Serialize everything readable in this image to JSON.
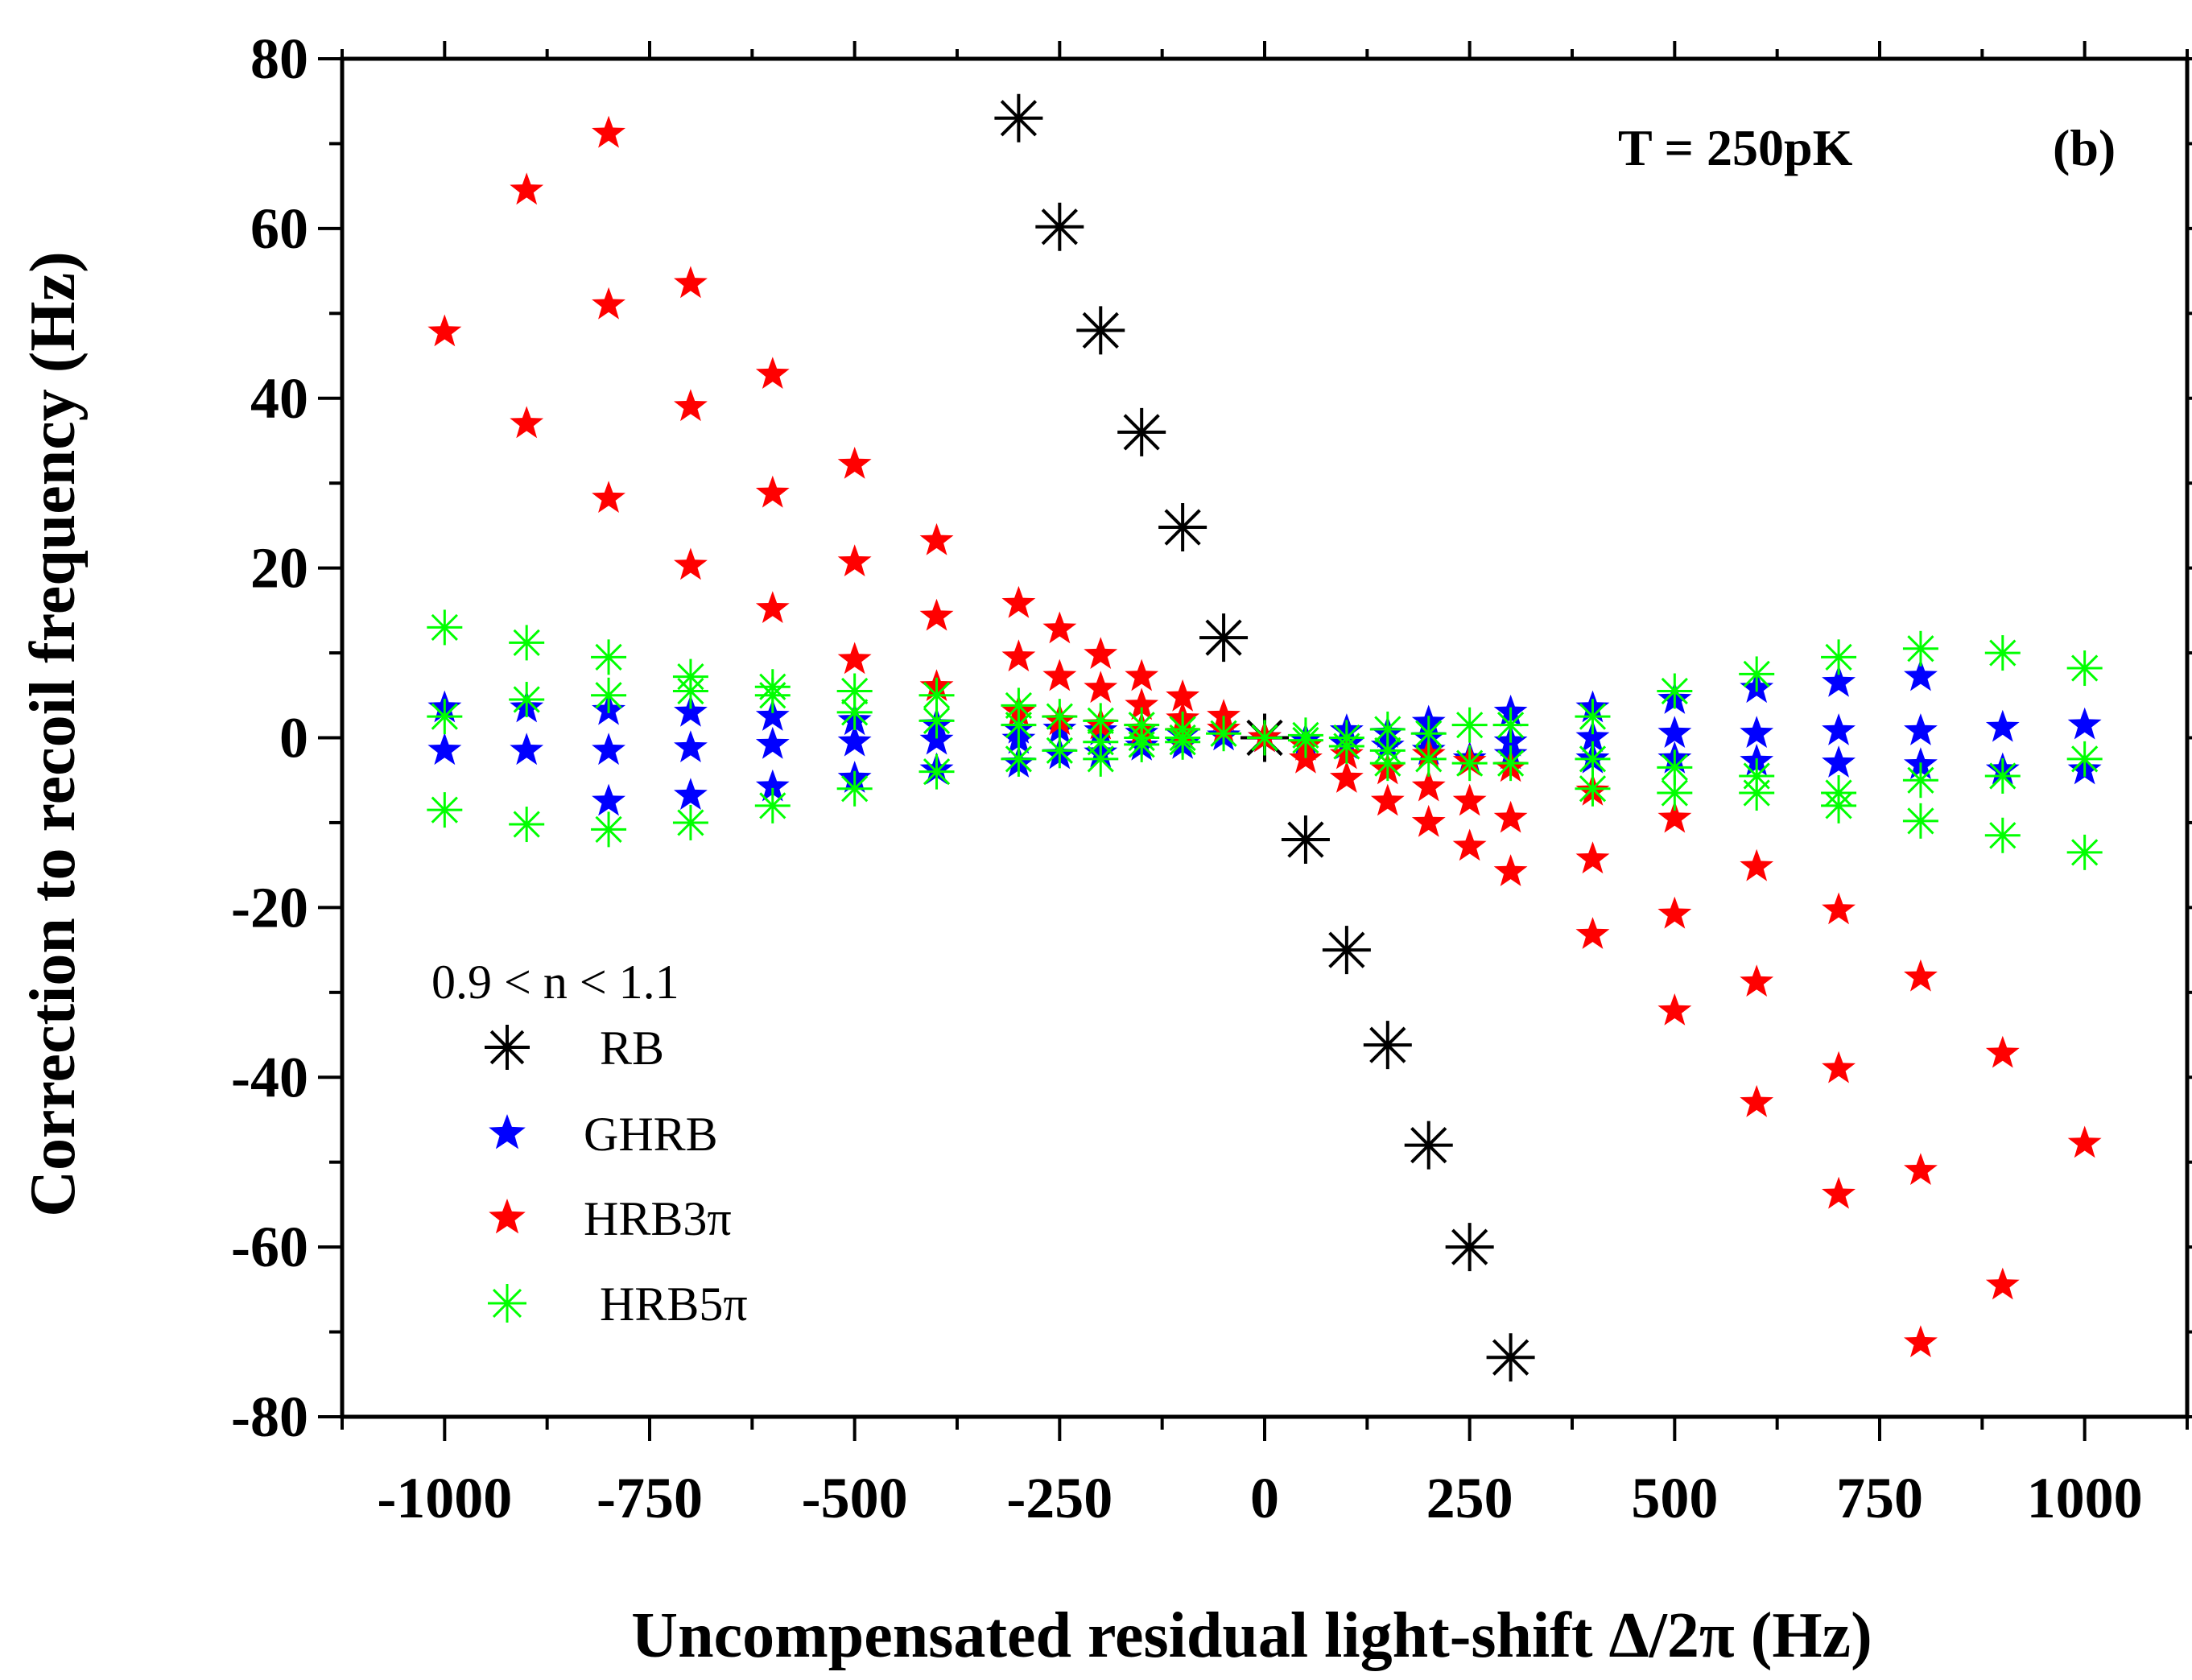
{
  "chart_data": {
    "type": "scatter",
    "title": "",
    "xlabel": "Uncompensated residual  light-shift Δ/2π (Hz)",
    "ylabel": "Correction to recoil frequency (Hz)",
    "xlim": [
      -1125,
      1125
    ],
    "ylim": [
      -80,
      80
    ],
    "x_ticks": [
      -1000,
      -750,
      -500,
      -250,
      0,
      250,
      500,
      750,
      1000
    ],
    "x_tick_labels": [
      "-1000",
      "-750",
      "-500",
      "-250",
      "0",
      "250",
      "500",
      "750",
      "1000"
    ],
    "y_ticks": [
      -80,
      -60,
      -40,
      -20,
      0,
      20,
      40,
      60,
      80
    ],
    "y_tick_labels": [
      "-80",
      "-60",
      "-40",
      "-20",
      "0",
      "20",
      "40",
      "60",
      "80"
    ],
    "annotations": {
      "temperature": "T = 250pK",
      "panel": "(b)"
    },
    "legend": {
      "title": "0.9 < n < 1.1",
      "position": "bottom-left"
    },
    "series": [
      {
        "name": "RB",
        "label": "RB",
        "marker": "asterisk",
        "color": "#000000",
        "points": [
          [
            -300,
            73
          ],
          [
            -250,
            60.2
          ],
          [
            -200,
            48
          ],
          [
            -150,
            36
          ],
          [
            -100,
            24.8
          ],
          [
            -50,
            11.8
          ],
          [
            0,
            0
          ],
          [
            50,
            -12
          ],
          [
            100,
            -25
          ],
          [
            150,
            -36.2
          ],
          [
            200,
            -48
          ],
          [
            250,
            -60
          ],
          [
            300,
            -73
          ]
        ]
      },
      {
        "name": "GHRB",
        "label": "GHRB",
        "marker": "star",
        "color": "#0000ff",
        "points": [
          [
            -1000,
            3.5
          ],
          [
            -1000,
            -1.5
          ],
          [
            -900,
            3.5
          ],
          [
            -900,
            -1.5
          ],
          [
            -800,
            3.2
          ],
          [
            -800,
            -1.5
          ],
          [
            -800,
            -7.5
          ],
          [
            -700,
            3
          ],
          [
            -700,
            -1.2
          ],
          [
            -700,
            -6.8
          ],
          [
            -600,
            2.5
          ],
          [
            -600,
            -0.8
          ],
          [
            -600,
            -5.8
          ],
          [
            -500,
            2
          ],
          [
            -500,
            -0.5
          ],
          [
            -500,
            -4.8
          ],
          [
            -400,
            1.5
          ],
          [
            -400,
            -0.3
          ],
          [
            -400,
            -3.8
          ],
          [
            -300,
            1
          ],
          [
            -300,
            -0.2
          ],
          [
            -300,
            -3
          ],
          [
            -250,
            1
          ],
          [
            -250,
            -2
          ],
          [
            -200,
            0.8
          ],
          [
            -200,
            -1.8
          ],
          [
            -150,
            0.5
          ],
          [
            -150,
            -1
          ],
          [
            -100,
            0.3
          ],
          [
            -100,
            -0.8
          ],
          [
            -50,
            0.2
          ],
          [
            0,
            0
          ],
          [
            50,
            -0.3
          ],
          [
            100,
            0.8
          ],
          [
            100,
            -0.8
          ],
          [
            150,
            0.5
          ],
          [
            150,
            -1
          ],
          [
            200,
            1.8
          ],
          [
            200,
            -1.5
          ],
          [
            200,
            0
          ],
          [
            250,
            -2.5
          ],
          [
            300,
            3
          ],
          [
            300,
            -0.5
          ],
          [
            300,
            -2
          ],
          [
            400,
            3.5
          ],
          [
            400,
            0
          ],
          [
            400,
            -2.5
          ],
          [
            500,
            4.5
          ],
          [
            500,
            0.5
          ],
          [
            500,
            -2.5
          ],
          [
            600,
            5.8
          ],
          [
            600,
            0.5
          ],
          [
            600,
            -2.8
          ],
          [
            700,
            6.5
          ],
          [
            700,
            0.8
          ],
          [
            700,
            -3
          ],
          [
            800,
            7.2
          ],
          [
            800,
            0.8
          ],
          [
            800,
            -3.2
          ],
          [
            900,
            1.2
          ],
          [
            900,
            -3.8
          ],
          [
            1000,
            1.5
          ],
          [
            1000,
            -3.8
          ]
        ]
      },
      {
        "name": "HRB3π",
        "label": "HRB3π",
        "marker": "star",
        "color": "#ff0000",
        "points": [
          [
            -1000,
            47.8
          ],
          [
            -900,
            64.5
          ],
          [
            -900,
            37
          ],
          [
            -800,
            71.2
          ],
          [
            -800,
            51
          ],
          [
            -800,
            28.2
          ],
          [
            -700,
            53.5
          ],
          [
            -700,
            39
          ],
          [
            -700,
            20.3
          ],
          [
            -600,
            42.8
          ],
          [
            -600,
            28.8
          ],
          [
            -600,
            15.2
          ],
          [
            -500,
            32.2
          ],
          [
            -500,
            20.7
          ],
          [
            -500,
            9.2
          ],
          [
            -400,
            23.2
          ],
          [
            -400,
            14.3
          ],
          [
            -400,
            6
          ],
          [
            -300,
            15.8
          ],
          [
            -300,
            9.5
          ],
          [
            -300,
            3
          ],
          [
            -250,
            12.8
          ],
          [
            -250,
            7.2
          ],
          [
            -250,
            2
          ],
          [
            -200,
            9.8
          ],
          [
            -200,
            5.8
          ],
          [
            -200,
            1.5
          ],
          [
            -150,
            7.2
          ],
          [
            -150,
            3.8
          ],
          [
            -150,
            1
          ],
          [
            -100,
            4.8
          ],
          [
            -100,
            2.2
          ],
          [
            -100,
            0.5
          ],
          [
            -50,
            2.5
          ],
          [
            -50,
            1
          ],
          [
            0,
            0
          ],
          [
            50,
            -1
          ],
          [
            50,
            -2.5
          ],
          [
            100,
            -2
          ],
          [
            100,
            -4.8
          ],
          [
            150,
            -3.8
          ],
          [
            150,
            -7.5
          ],
          [
            200,
            -2
          ],
          [
            200,
            -5.8
          ],
          [
            200,
            -10
          ],
          [
            250,
            -2.8
          ],
          [
            250,
            -7.5
          ],
          [
            250,
            -12.8
          ],
          [
            300,
            -3.5
          ],
          [
            300,
            -9.5
          ],
          [
            300,
            -15.8
          ],
          [
            400,
            -6.3
          ],
          [
            400,
            -14.3
          ],
          [
            400,
            -23.2
          ],
          [
            500,
            -9.5
          ],
          [
            500,
            -20.8
          ],
          [
            500,
            -32.2
          ],
          [
            600,
            -15.2
          ],
          [
            600,
            -28.8
          ],
          [
            600,
            -43
          ],
          [
            700,
            -20.3
          ],
          [
            700,
            -39
          ],
          [
            700,
            -53.8
          ],
          [
            800,
            -28.2
          ],
          [
            800,
            -51
          ],
          [
            800,
            -71.3
          ],
          [
            900,
            -37.2
          ],
          [
            900,
            -64.5
          ],
          [
            1000,
            -47.8
          ]
        ]
      },
      {
        "name": "HRB5π",
        "label": "HRB5π",
        "marker": "asterisk",
        "color": "#00ff00",
        "points": [
          [
            -1000,
            13
          ],
          [
            -1000,
            2.5
          ],
          [
            -1000,
            -8.5
          ],
          [
            -900,
            11.2
          ],
          [
            -900,
            4.5
          ],
          [
            -900,
            -10.2
          ],
          [
            -800,
            9.5
          ],
          [
            -800,
            5
          ],
          [
            -800,
            -10.8
          ],
          [
            -700,
            7.2
          ],
          [
            -700,
            5.5
          ],
          [
            -700,
            -10
          ],
          [
            -600,
            6
          ],
          [
            -600,
            5
          ],
          [
            -600,
            -8
          ],
          [
            -500,
            5.5
          ],
          [
            -500,
            3
          ],
          [
            -500,
            -6
          ],
          [
            -400,
            5
          ],
          [
            -400,
            2
          ],
          [
            -400,
            -4
          ],
          [
            -300,
            3.8
          ],
          [
            -300,
            1.5
          ],
          [
            -300,
            -2.5
          ],
          [
            -250,
            2.5
          ],
          [
            -250,
            -1.5
          ],
          [
            -200,
            2
          ],
          [
            -200,
            -0.5
          ],
          [
            -200,
            -2.5
          ],
          [
            -150,
            1.5
          ],
          [
            -150,
            0
          ],
          [
            -150,
            -0.8
          ],
          [
            -100,
            1
          ],
          [
            -100,
            0
          ],
          [
            -100,
            -0.5
          ],
          [
            -50,
            0.5
          ],
          [
            0,
            0
          ],
          [
            50,
            -0.3
          ],
          [
            50,
            0.3
          ],
          [
            100,
            0
          ],
          [
            100,
            -1
          ],
          [
            150,
            1
          ],
          [
            150,
            -1.5
          ],
          [
            150,
            -3
          ],
          [
            200,
            0.5
          ],
          [
            200,
            -2.5
          ],
          [
            250,
            1.5
          ],
          [
            250,
            -3
          ],
          [
            300,
            1.5
          ],
          [
            300,
            -3
          ],
          [
            400,
            2.5
          ],
          [
            400,
            -2.5
          ],
          [
            400,
            -6
          ],
          [
            500,
            5.5
          ],
          [
            500,
            -3.5
          ],
          [
            500,
            -6.5
          ],
          [
            600,
            7.5
          ],
          [
            600,
            -4.5
          ],
          [
            600,
            -6.5
          ],
          [
            700,
            9.5
          ],
          [
            700,
            -6.5
          ],
          [
            700,
            -8
          ],
          [
            800,
            10.5
          ],
          [
            800,
            -5
          ],
          [
            800,
            -9.8
          ],
          [
            900,
            10
          ],
          [
            900,
            -4.5
          ],
          [
            900,
            -11.5
          ],
          [
            1000,
            8.2
          ],
          [
            1000,
            -2.5
          ],
          [
            1000,
            -13.5
          ]
        ]
      }
    ]
  }
}
